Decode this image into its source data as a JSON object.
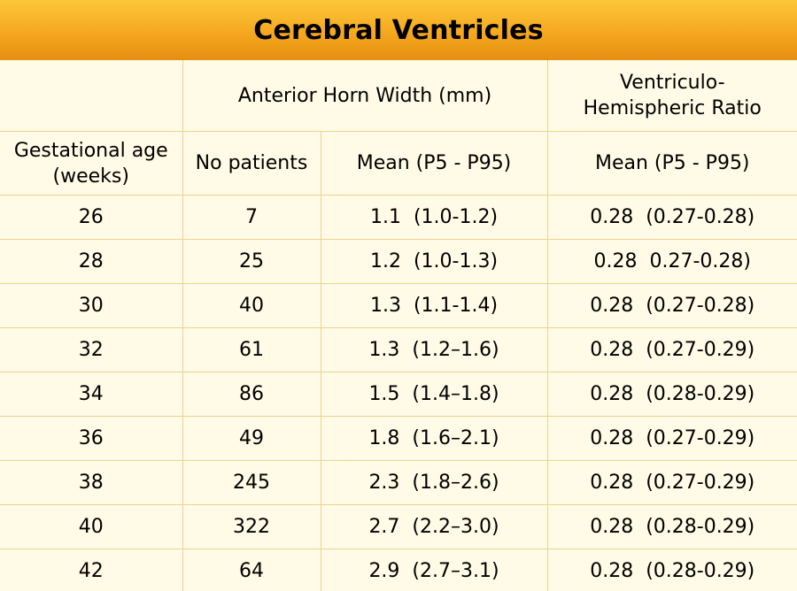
{
  "title": "Cerebral Ventricles",
  "chart_data": {
    "type": "table",
    "header_groups": [
      {
        "label": "",
        "span": 1
      },
      {
        "label": "Anterior Horn Width (mm)",
        "span": 2
      },
      {
        "label": "Ventriculo-\nHemispheric Ratio",
        "span": 1
      }
    ],
    "columns": [
      "Gestational age\n(weeks)",
      "No patients",
      "Mean (P5 - P95)",
      "Mean (P5 - P95)"
    ],
    "rows": [
      [
        "26",
        "7",
        "1.1  (1.0-1.2)",
        "0.28  (0.27-0.28)"
      ],
      [
        "28",
        "25",
        "1.2  (1.0-1.3)",
        "0.28  0.27-0.28)"
      ],
      [
        "30",
        "40",
        "1.3  (1.1-1.4)",
        "0.28  (0.27-0.28)"
      ],
      [
        "32",
        "61",
        "1.3  (1.2–1.6)",
        "0.28  (0.27-0.29)"
      ],
      [
        "34",
        "86",
        "1.5  (1.4–1.8)",
        "0.28  (0.28-0.29)"
      ],
      [
        "36",
        "49",
        "1.8  (1.6–2.1)",
        "0.28  (0.27-0.29)"
      ],
      [
        "38",
        "245",
        "2.3  (1.8–2.6)",
        "0.28  (0.27-0.29)"
      ],
      [
        "40",
        "322",
        "2.7  (2.2–3.0)",
        "0.28  (0.28-0.29)"
      ],
      [
        "42",
        "64",
        "2.9  (2.7–3.1)",
        "0.28  (0.28-0.29)"
      ]
    ]
  },
  "colors": {
    "title_bar_top": "#fcc73a",
    "title_bar_bottom": "#e48e12",
    "background": "#fffbe6",
    "grid": "#efd191"
  }
}
